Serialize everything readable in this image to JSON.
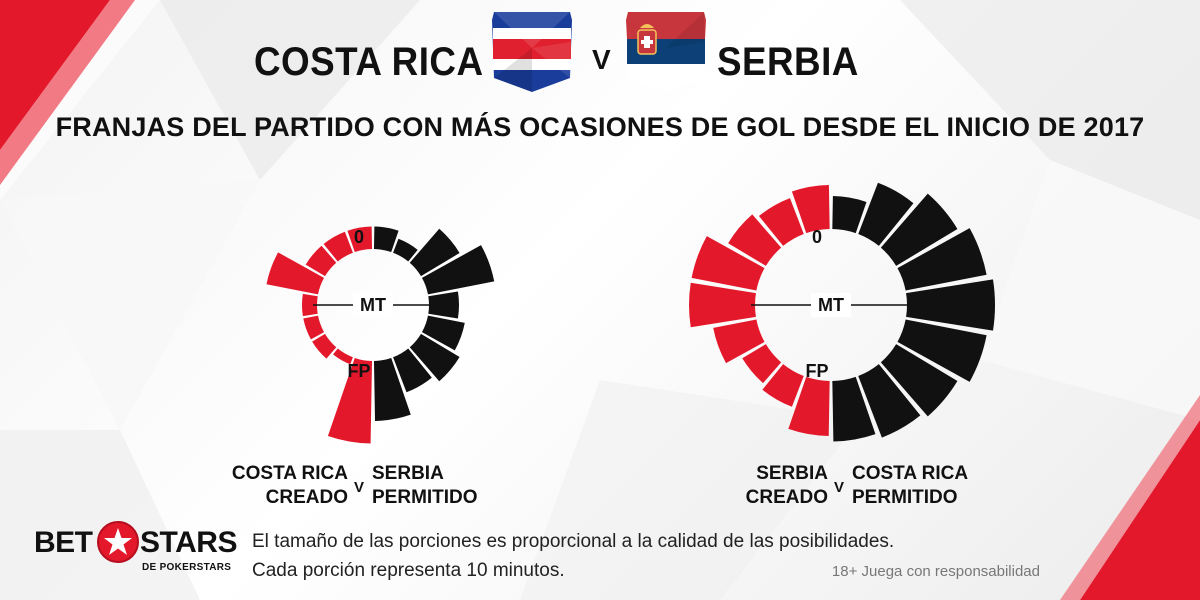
{
  "header": {
    "team_home": "COSTA RICA",
    "vs": "V",
    "team_away": "SERBIA",
    "subtitle": "FRANJAS DEL PARTIDO CON MÁS OCASIONES DE GOL DESDE EL INICIO DE 2017"
  },
  "flags": {
    "home": {
      "name": "costa-rica-flag",
      "colors": [
        "#1a3d9c",
        "#ffffff",
        "#e0202e"
      ]
    },
    "away": {
      "name": "serbia-flag",
      "colors": [
        "#c6363c",
        "#0c4076",
        "#ffffff"
      ]
    }
  },
  "colors": {
    "created": "#111111",
    "allowed": "#e3192b",
    "accent_red": "#e3192b"
  },
  "chart_data": [
    {
      "type": "radial-bar",
      "marker_labels": [
        "0",
        "MT",
        "FP"
      ],
      "slices_minutes": 10,
      "series": [
        {
          "name": "COSTA RICA CREADO",
          "color": "#111111",
          "values": [
            3,
            2,
            6,
            9,
            4,
            5,
            6,
            5,
            8
          ]
        },
        {
          "name": "SERBIA PERMITIDO",
          "color": "#e3192b",
          "values": [
            3,
            3,
            3,
            7,
            2,
            2,
            2,
            1,
            11
          ]
        }
      ],
      "legend": {
        "left": [
          "COSTA RICA",
          "CREADO"
        ],
        "v": "V",
        "right": [
          "SERBIA",
          "PERMITIDO"
        ]
      }
    },
    {
      "type": "radial-bar",
      "marker_labels": [
        "0",
        "MT",
        "FP"
      ],
      "slices_minutes": 10,
      "series": [
        {
          "name": "SERBIA CREADO",
          "color": "#111111",
          "values": [
            6,
            10,
            13,
            15,
            16,
            15,
            13,
            12,
            11
          ]
        },
        {
          "name": "COSTA RICA PERMITIDO",
          "color": "#e3192b",
          "values": [
            8,
            7,
            8,
            12,
            12,
            8,
            5,
            6,
            10
          ]
        }
      ],
      "legend": {
        "left": [
          "SERBIA",
          "CREADO"
        ],
        "v": "V",
        "right": [
          "COSTA RICA",
          "PERMITIDO"
        ]
      }
    }
  ],
  "footer": {
    "logo_bet": "BET",
    "logo_stars": "STARS",
    "logo_sub": "DE POKERSTARS",
    "note1": "El tamaño de las porciones es proporcional a la calidad de las posibilidades.",
    "note2": "Cada porción representa 10 minutos.",
    "responsible": "18+ Juega con responsabilidad"
  }
}
